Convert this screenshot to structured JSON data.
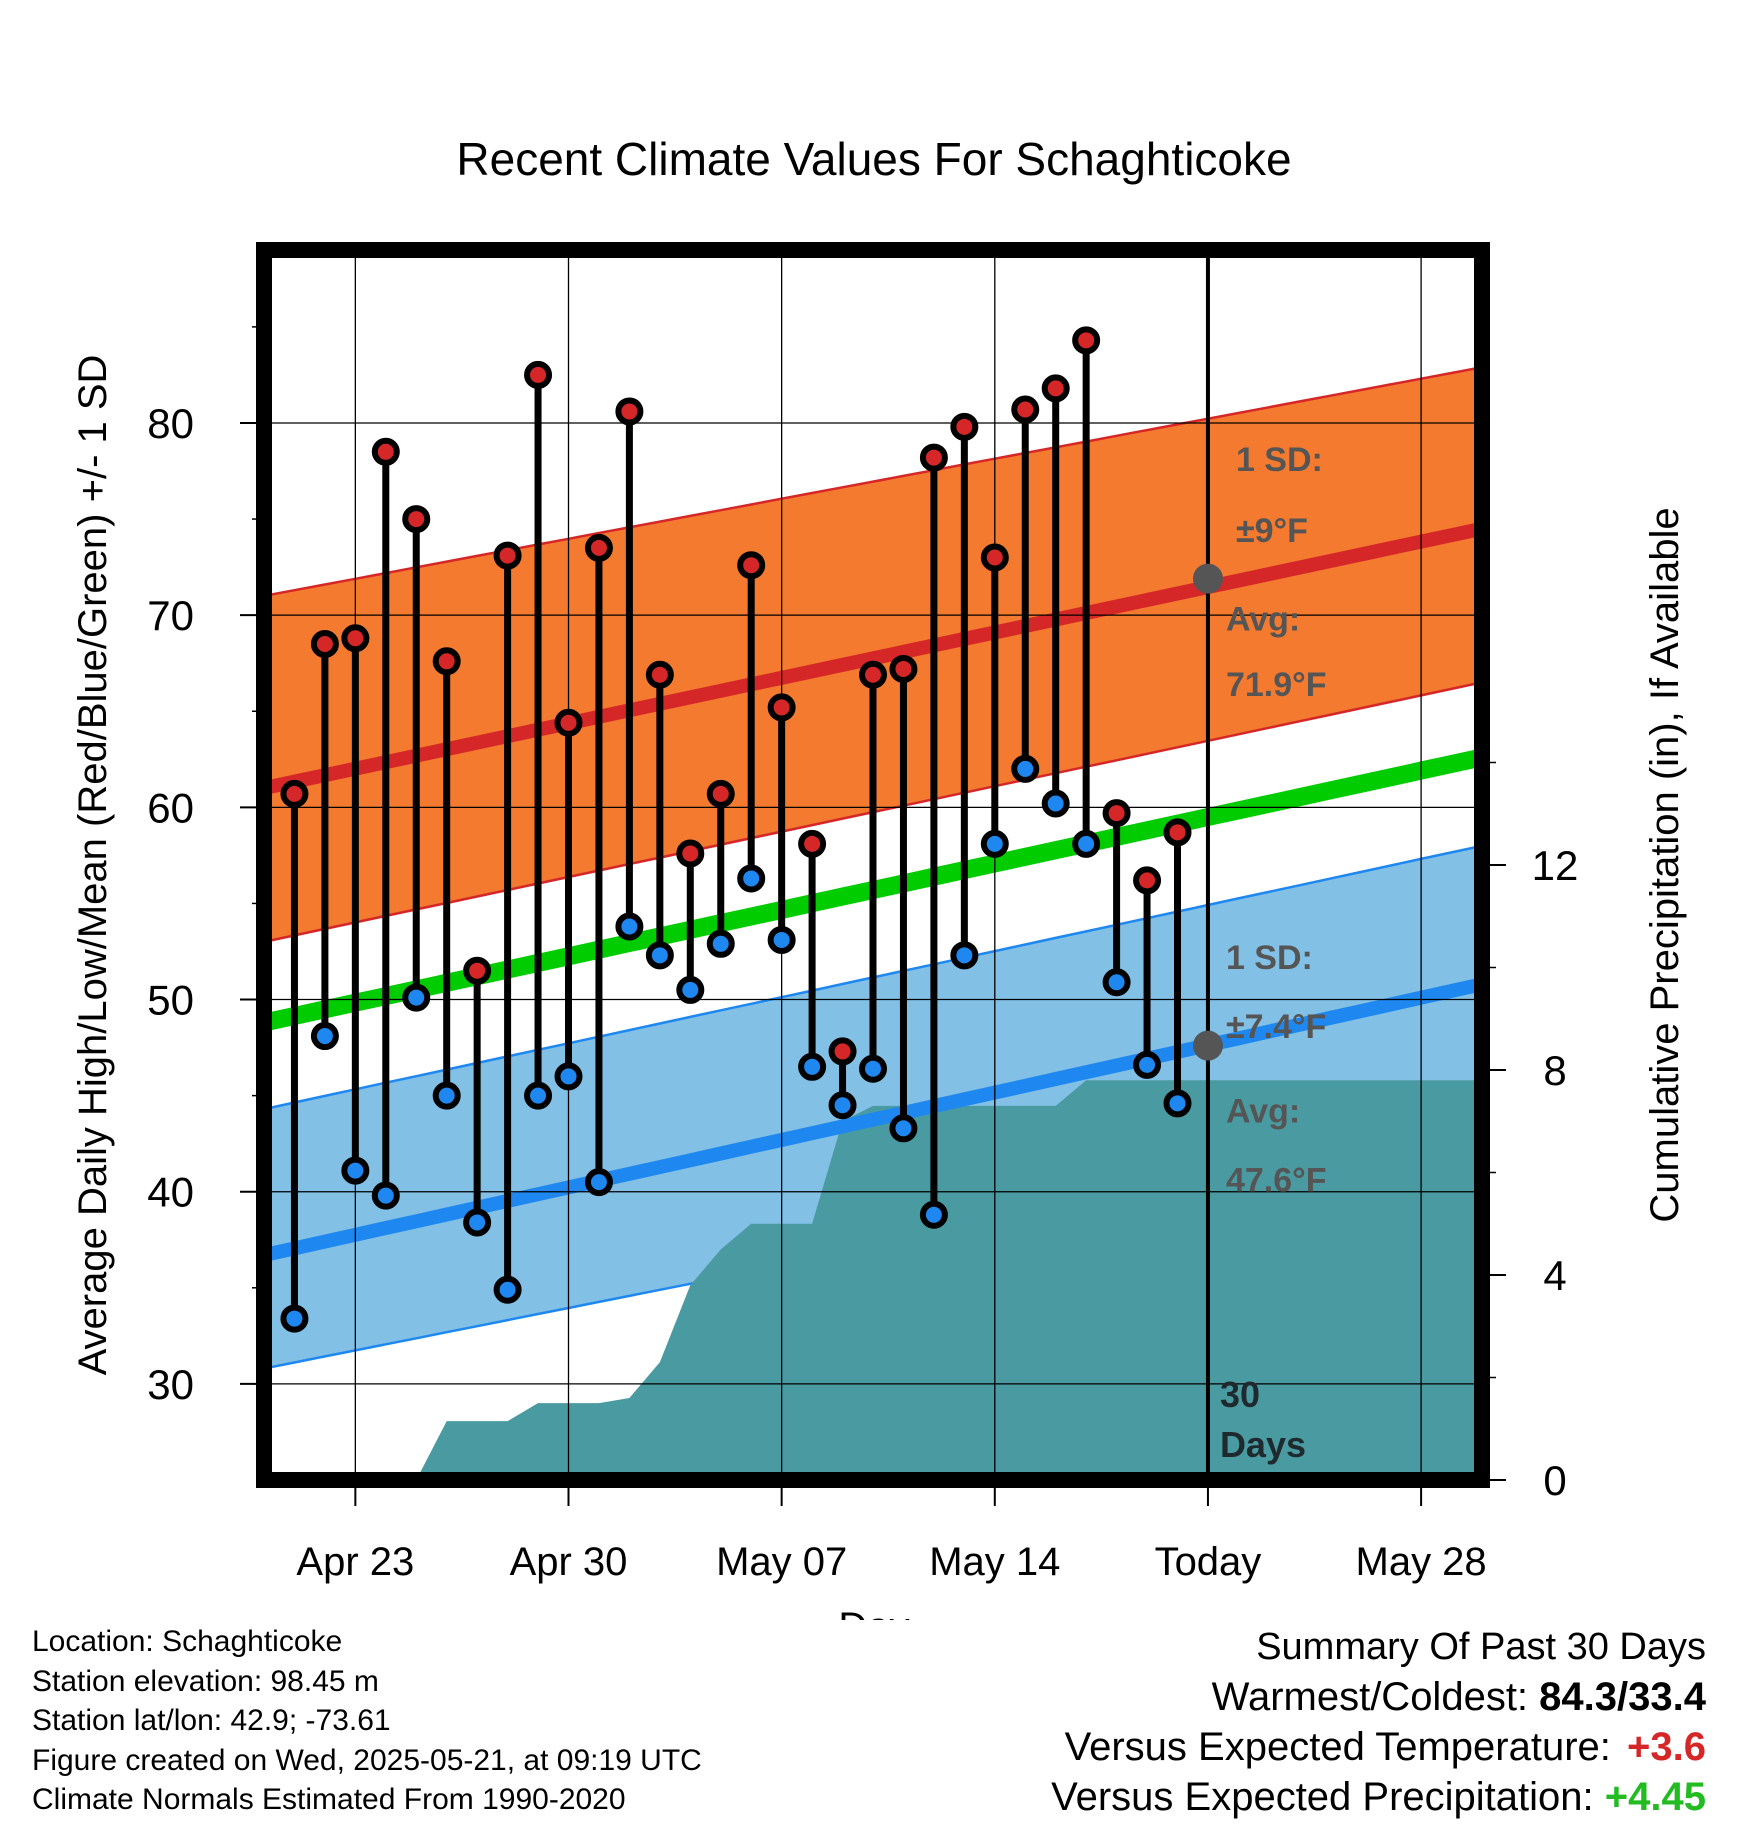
{
  "chart_data": {
    "type": "line",
    "title": "Recent Climate Values For Schaghticoke",
    "xlabel": "Day",
    "ylabel_left": "Average Daily High/Low/Mean (Red/Blue/Green) +/- 1 SD",
    "ylabel_right": "Cumulative Precipitation (in), If Available",
    "y_left_range": [
      25,
      89
    ],
    "y_left_ticks": [
      "30",
      "40",
      "50",
      "60",
      "70",
      "80"
    ],
    "y_right_range": [
      0,
      24
    ],
    "y_right_ticks": [
      "0",
      "4",
      "8",
      "12"
    ],
    "x_range": [
      "2025-04-20",
      "2025-05-30"
    ],
    "x_ticks": [
      {
        "date": "2025-04-23",
        "label": "Apr 23"
      },
      {
        "date": "2025-04-30",
        "label": "Apr 30"
      },
      {
        "date": "2025-05-07",
        "label": "May 07"
      },
      {
        "date": "2025-05-14",
        "label": "May 14"
      },
      {
        "date": "2025-05-21",
        "label": "Today"
      },
      {
        "date": "2025-05-28",
        "label": "May 28"
      }
    ],
    "grid": true,
    "today_date": "2025-05-21",
    "normal_high_band": {
      "dates": [
        "2025-04-20",
        "2025-05-30"
      ],
      "mean": [
        61.0,
        74.5
      ],
      "upper": [
        71.0,
        82.9
      ],
      "lower": [
        53.0,
        66.5
      ]
    },
    "normal_low_band": {
      "dates": [
        "2025-04-20",
        "2025-05-30"
      ],
      "mean": [
        36.7,
        50.8
      ],
      "upper": [
        44.3,
        58.0
      ],
      "lower": [
        30.8,
        43.4
      ]
    },
    "normal_mean": {
      "dates": [
        "2025-04-20",
        "2025-05-30"
      ],
      "values": [
        48.8,
        62.6
      ]
    },
    "daily": {
      "dates": [
        "2025-04-21",
        "2025-04-22",
        "2025-04-23",
        "2025-04-24",
        "2025-04-25",
        "2025-04-26",
        "2025-04-27",
        "2025-04-28",
        "2025-04-29",
        "2025-04-30",
        "2025-05-01",
        "2025-05-02",
        "2025-05-03",
        "2025-05-04",
        "2025-05-05",
        "2025-05-06",
        "2025-05-07",
        "2025-05-08",
        "2025-05-09",
        "2025-05-10",
        "2025-05-11",
        "2025-05-12",
        "2025-05-13",
        "2025-05-14",
        "2025-05-15",
        "2025-05-16",
        "2025-05-17",
        "2025-05-18",
        "2025-05-19",
        "2025-05-20"
      ],
      "highs": [
        60.7,
        68.5,
        68.8,
        78.5,
        75.0,
        67.6,
        51.5,
        73.1,
        82.5,
        64.4,
        73.5,
        80.6,
        66.9,
        57.6,
        60.7,
        72.6,
        65.2,
        58.1,
        47.3,
        66.9,
        67.2,
        78.2,
        79.8,
        73.0,
        80.7,
        81.8,
        84.3,
        59.7,
        56.2,
        58.7
      ],
      "lows": [
        33.4,
        48.1,
        41.1,
        39.8,
        50.1,
        45.0,
        38.4,
        34.9,
        45.0,
        46.0,
        40.5,
        53.8,
        52.3,
        50.5,
        52.9,
        56.3,
        53.1,
        46.5,
        44.5,
        46.4,
        43.3,
        38.8,
        52.3,
        58.1,
        62.0,
        60.2,
        58.1,
        50.9,
        46.6,
        44.6
      ]
    },
    "cumulative_precip": {
      "dates": [
        "2025-04-22",
        "2025-04-24",
        "2025-04-25",
        "2025-04-26",
        "2025-04-28",
        "2025-04-29",
        "2025-05-01",
        "2025-05-02",
        "2025-05-03",
        "2025-05-04",
        "2025-05-05",
        "2025-05-06",
        "2025-05-07",
        "2025-05-08",
        "2025-05-09",
        "2025-05-10",
        "2025-05-11",
        "2025-05-12",
        "2025-05-13",
        "2025-05-14",
        "2025-05-15",
        "2025-05-16",
        "2025-05-17",
        "2025-05-18",
        "2025-05-19",
        "2025-05-20",
        "2025-05-30"
      ],
      "values": [
        0,
        0,
        0,
        1.15,
        1.15,
        1.5,
        1.5,
        1.6,
        2.3,
        3.8,
        4.5,
        5.0,
        5.0,
        5.0,
        7.0,
        7.3,
        7.3,
        7.3,
        7.3,
        7.3,
        7.3,
        7.3,
        7.8,
        7.8,
        7.8,
        7.8,
        7.8
      ]
    },
    "annotations": {
      "high_sd_label": "1 SD:",
      "high_sd_value": "±9°F",
      "high_avg_label": "Avg:",
      "high_avg_value": "71.9°F",
      "high_avg": 71.9,
      "low_sd_label": "1 SD:",
      "low_sd_value": "±7.4°F",
      "low_avg_label": "Avg:",
      "low_avg_value": "47.6°F",
      "low_avg": 47.6,
      "days_label_line1": "30",
      "days_label_line2": "Days"
    },
    "colors": {
      "high_band": "#f47a2f",
      "high_line": "#d62728",
      "low_band": "#82c0e6",
      "low_line": "#1e88f0",
      "mean_line": "#00cc00",
      "precip": "#4a9aa2",
      "high_marker": "#d62728",
      "low_marker": "#1e88f0",
      "annotation_text": "#555555"
    }
  },
  "footer": {
    "location": "Location: Schaghticoke",
    "elevation": "Station elevation: 98.45 m",
    "latlon": "Station lat/lon: 42.9; -73.61",
    "created": "Figure created on Wed, 2025-05-21, at 09:19 UTC",
    "normals": "Climate Normals Estimated From 1990-2020"
  },
  "summary": {
    "title": "Summary Of Past 30 Days",
    "warmest_coldest_label": "Warmest/Coldest:",
    "warmest_coldest_value": "84.3/33.4",
    "temp_label": "Versus Expected Temperature:",
    "temp_value": "+3.6",
    "precip_label": "Versus Expected Precipitation:",
    "precip_value": "+4.45"
  }
}
